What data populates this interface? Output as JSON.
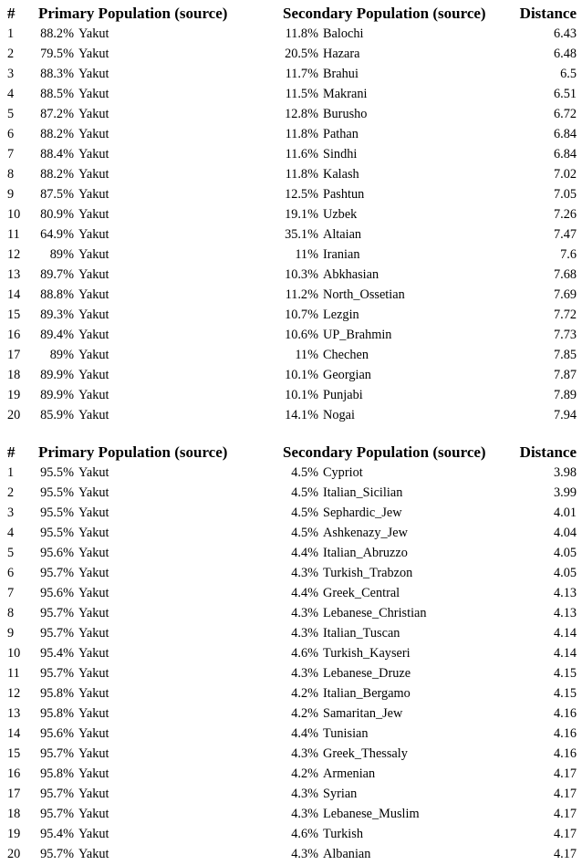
{
  "colors": {
    "text": "#000000",
    "background": "#ffffff"
  },
  "tables": [
    {
      "headers": {
        "num": "#",
        "primary": "Primary Population (source)",
        "secondary": "Secondary Population (source)",
        "distance": "Distance"
      },
      "rows": [
        {
          "num": "1",
          "primary_pct": "88.2%",
          "primary_name": "Yakut",
          "secondary_pct": "11.8%",
          "secondary_name": "Balochi",
          "distance": "6.43"
        },
        {
          "num": "2",
          "primary_pct": "79.5%",
          "primary_name": "Yakut",
          "secondary_pct": "20.5%",
          "secondary_name": "Hazara",
          "distance": "6.48"
        },
        {
          "num": "3",
          "primary_pct": "88.3%",
          "primary_name": "Yakut",
          "secondary_pct": "11.7%",
          "secondary_name": "Brahui",
          "distance": "6.5"
        },
        {
          "num": "4",
          "primary_pct": "88.5%",
          "primary_name": "Yakut",
          "secondary_pct": "11.5%",
          "secondary_name": "Makrani",
          "distance": "6.51"
        },
        {
          "num": "5",
          "primary_pct": "87.2%",
          "primary_name": "Yakut",
          "secondary_pct": "12.8%",
          "secondary_name": "Burusho",
          "distance": "6.72"
        },
        {
          "num": "6",
          "primary_pct": "88.2%",
          "primary_name": "Yakut",
          "secondary_pct": "11.8%",
          "secondary_name": "Pathan",
          "distance": "6.84"
        },
        {
          "num": "7",
          "primary_pct": "88.4%",
          "primary_name": "Yakut",
          "secondary_pct": "11.6%",
          "secondary_name": "Sindhi",
          "distance": "6.84"
        },
        {
          "num": "8",
          "primary_pct": "88.2%",
          "primary_name": "Yakut",
          "secondary_pct": "11.8%",
          "secondary_name": "Kalash",
          "distance": "7.02"
        },
        {
          "num": "9",
          "primary_pct": "87.5%",
          "primary_name": "Yakut",
          "secondary_pct": "12.5%",
          "secondary_name": "Pashtun",
          "distance": "7.05"
        },
        {
          "num": "10",
          "primary_pct": "80.9%",
          "primary_name": "Yakut",
          "secondary_pct": "19.1%",
          "secondary_name": "Uzbek",
          "distance": "7.26"
        },
        {
          "num": "11",
          "primary_pct": "64.9%",
          "primary_name": "Yakut",
          "secondary_pct": "35.1%",
          "secondary_name": "Altaian",
          "distance": "7.47"
        },
        {
          "num": "12",
          "primary_pct": "89%",
          "primary_name": "Yakut",
          "secondary_pct": "11%",
          "secondary_name": "Iranian",
          "distance": "7.6"
        },
        {
          "num": "13",
          "primary_pct": "89.7%",
          "primary_name": "Yakut",
          "secondary_pct": "10.3%",
          "secondary_name": "Abkhasian",
          "distance": "7.68"
        },
        {
          "num": "14",
          "primary_pct": "88.8%",
          "primary_name": "Yakut",
          "secondary_pct": "11.2%",
          "secondary_name": "North_Ossetian",
          "distance": "7.69"
        },
        {
          "num": "15",
          "primary_pct": "89.3%",
          "primary_name": "Yakut",
          "secondary_pct": "10.7%",
          "secondary_name": "Lezgin",
          "distance": "7.72"
        },
        {
          "num": "16",
          "primary_pct": "89.4%",
          "primary_name": "Yakut",
          "secondary_pct": "10.6%",
          "secondary_name": "UP_Brahmin",
          "distance": "7.73"
        },
        {
          "num": "17",
          "primary_pct": "89%",
          "primary_name": "Yakut",
          "secondary_pct": "11%",
          "secondary_name": "Chechen",
          "distance": "7.85"
        },
        {
          "num": "18",
          "primary_pct": "89.9%",
          "primary_name": "Yakut",
          "secondary_pct": "10.1%",
          "secondary_name": "Georgian",
          "distance": "7.87"
        },
        {
          "num": "19",
          "primary_pct": "89.9%",
          "primary_name": "Yakut",
          "secondary_pct": "10.1%",
          "secondary_name": "Punjabi",
          "distance": "7.89"
        },
        {
          "num": "20",
          "primary_pct": "85.9%",
          "primary_name": "Yakut",
          "secondary_pct": "14.1%",
          "secondary_name": "Nogai",
          "distance": "7.94"
        }
      ]
    },
    {
      "headers": {
        "num": "#",
        "primary": "Primary Population (source)",
        "secondary": "Secondary Population (source)",
        "distance": "Distance"
      },
      "rows": [
        {
          "num": "1",
          "primary_pct": "95.5%",
          "primary_name": "Yakut",
          "secondary_pct": "4.5%",
          "secondary_name": "Cypriot",
          "distance": "3.98"
        },
        {
          "num": "2",
          "primary_pct": "95.5%",
          "primary_name": "Yakut",
          "secondary_pct": "4.5%",
          "secondary_name": "Italian_Sicilian",
          "distance": "3.99"
        },
        {
          "num": "3",
          "primary_pct": "95.5%",
          "primary_name": "Yakut",
          "secondary_pct": "4.5%",
          "secondary_name": "Sephardic_Jew",
          "distance": "4.01"
        },
        {
          "num": "4",
          "primary_pct": "95.5%",
          "primary_name": "Yakut",
          "secondary_pct": "4.5%",
          "secondary_name": "Ashkenazy_Jew",
          "distance": "4.04"
        },
        {
          "num": "5",
          "primary_pct": "95.6%",
          "primary_name": "Yakut",
          "secondary_pct": "4.4%",
          "secondary_name": "Italian_Abruzzo",
          "distance": "4.05"
        },
        {
          "num": "6",
          "primary_pct": "95.7%",
          "primary_name": "Yakut",
          "secondary_pct": "4.3%",
          "secondary_name": "Turkish_Trabzon",
          "distance": "4.05"
        },
        {
          "num": "7",
          "primary_pct": "95.6%",
          "primary_name": "Yakut",
          "secondary_pct": "4.4%",
          "secondary_name": "Greek_Central",
          "distance": "4.13"
        },
        {
          "num": "8",
          "primary_pct": "95.7%",
          "primary_name": "Yakut",
          "secondary_pct": "4.3%",
          "secondary_name": "Lebanese_Christian",
          "distance": "4.13"
        },
        {
          "num": "9",
          "primary_pct": "95.7%",
          "primary_name": "Yakut",
          "secondary_pct": "4.3%",
          "secondary_name": "Italian_Tuscan",
          "distance": "4.14"
        },
        {
          "num": "10",
          "primary_pct": "95.4%",
          "primary_name": "Yakut",
          "secondary_pct": "4.6%",
          "secondary_name": "Turkish_Kayseri",
          "distance": "4.14"
        },
        {
          "num": "11",
          "primary_pct": "95.7%",
          "primary_name": "Yakut",
          "secondary_pct": "4.3%",
          "secondary_name": "Lebanese_Druze",
          "distance": "4.15"
        },
        {
          "num": "12",
          "primary_pct": "95.8%",
          "primary_name": "Yakut",
          "secondary_pct": "4.2%",
          "secondary_name": "Italian_Bergamo",
          "distance": "4.15"
        },
        {
          "num": "13",
          "primary_pct": "95.8%",
          "primary_name": "Yakut",
          "secondary_pct": "4.2%",
          "secondary_name": "Samaritan_Jew",
          "distance": "4.16"
        },
        {
          "num": "14",
          "primary_pct": "95.6%",
          "primary_name": "Yakut",
          "secondary_pct": "4.4%",
          "secondary_name": "Tunisian",
          "distance": "4.16"
        },
        {
          "num": "15",
          "primary_pct": "95.7%",
          "primary_name": "Yakut",
          "secondary_pct": "4.3%",
          "secondary_name": "Greek_Thessaly",
          "distance": "4.16"
        },
        {
          "num": "16",
          "primary_pct": "95.8%",
          "primary_name": "Yakut",
          "secondary_pct": "4.2%",
          "secondary_name": "Armenian",
          "distance": "4.17"
        },
        {
          "num": "17",
          "primary_pct": "95.7%",
          "primary_name": "Yakut",
          "secondary_pct": "4.3%",
          "secondary_name": "Syrian",
          "distance": "4.17"
        },
        {
          "num": "18",
          "primary_pct": "95.7%",
          "primary_name": "Yakut",
          "secondary_pct": "4.3%",
          "secondary_name": "Lebanese_Muslim",
          "distance": "4.17"
        },
        {
          "num": "19",
          "primary_pct": "95.4%",
          "primary_name": "Yakut",
          "secondary_pct": "4.6%",
          "secondary_name": "Turkish",
          "distance": "4.17"
        },
        {
          "num": "20",
          "primary_pct": "95.7%",
          "primary_name": "Yakut",
          "secondary_pct": "4.3%",
          "secondary_name": "Albanian",
          "distance": "4.17"
        }
      ]
    }
  ]
}
